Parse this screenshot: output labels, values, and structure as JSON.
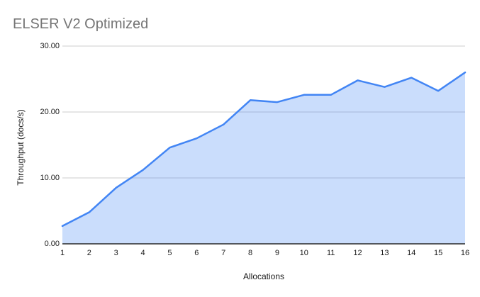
{
  "title": "ELSER V2 Optimized",
  "chart_data": {
    "type": "area",
    "title": "ELSER V2 Optimized",
    "xlabel": "Allocations",
    "ylabel": "Throughput (docs/s)",
    "categories": [
      "1",
      "2",
      "3",
      "4",
      "5",
      "6",
      "7",
      "8",
      "9",
      "10",
      "11",
      "12",
      "13",
      "14",
      "15",
      "16"
    ],
    "values": [
      2.7,
      4.8,
      8.5,
      11.2,
      14.6,
      16.0,
      18.1,
      21.8,
      21.5,
      22.6,
      22.6,
      24.8,
      23.8,
      25.2,
      23.2,
      26.0
    ],
    "ylim": [
      0,
      30
    ],
    "y_tick_labels": [
      "0.00",
      "10.00",
      "20.00",
      "30.00"
    ],
    "y_tick_values": [
      0,
      10,
      20,
      30
    ],
    "grid": true,
    "legend": "none",
    "colors": {
      "line": "#4285f4",
      "fill": "rgba(66,133,244,0.28)",
      "grid": "#cccccc",
      "axis": "#2b2b2b",
      "title": "#757575",
      "label": "#1a1a1a"
    }
  }
}
